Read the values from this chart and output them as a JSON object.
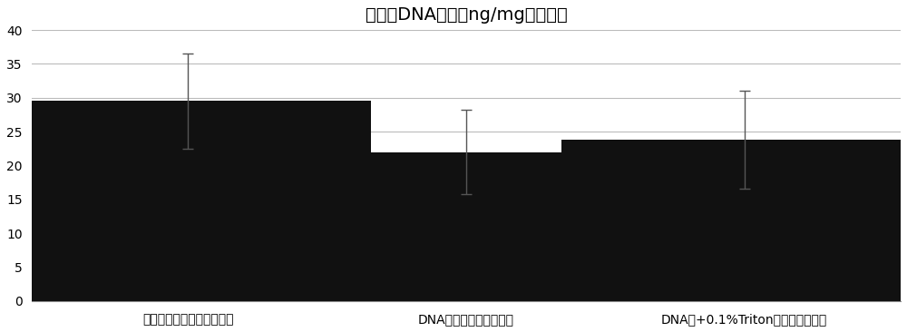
{
  "title": "纤维环DNA含量（ng/mg，干重）",
  "categories": [
    "超纯水提取处理后的纤维环",
    "DNA酶预处理后的纤维环",
    "DNA酶+0.1%Triton处理后的纤维环"
  ],
  "values": [
    29.5,
    22.0,
    23.8
  ],
  "errors": [
    7.0,
    6.2,
    7.2
  ],
  "bar_color": "#111111",
  "bar_width": 0.42,
  "ylim": [
    0,
    40
  ],
  "yticks": [
    0,
    5,
    10,
    15,
    20,
    25,
    30,
    35,
    40
  ],
  "background_color": "#ffffff",
  "grid_color": "#bbbbbb",
  "title_fontsize": 14,
  "tick_fontsize": 10,
  "label_fontsize": 10,
  "error_capsize": 4,
  "error_color": "#555555",
  "x_positions": [
    0.18,
    0.5,
    0.82
  ]
}
